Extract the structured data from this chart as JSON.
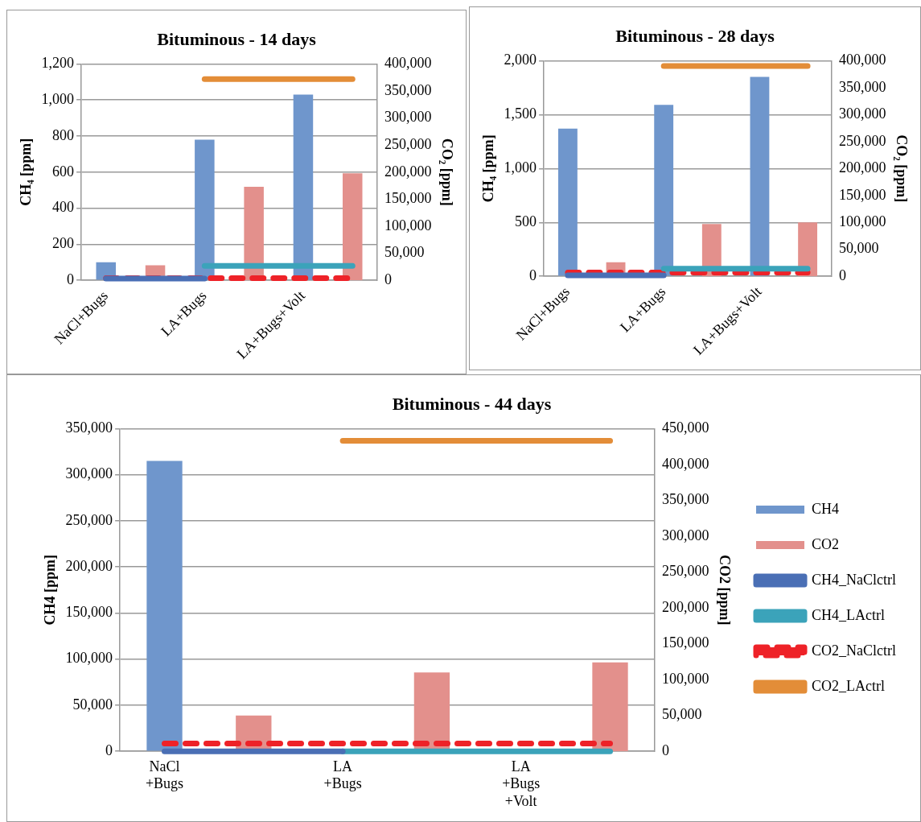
{
  "chart_data": [
    {
      "type": "bar",
      "title": "Bituminous - 14 days",
      "ylabel": "CH₄ [ppm]",
      "y2label": "CO₂ [ppm]",
      "categories": [
        "NaCl+Bugs",
        null,
        "LA+Bugs",
        null,
        "LA+Bugs+Volt",
        null
      ],
      "series": [
        {
          "color": "#6f96cc",
          "values": [
            100,
            null,
            780,
            null,
            1030,
            null
          ]
        },
        {
          "axis": "y2",
          "color": "#e3908c",
          "values": [
            null,
            28000,
            null,
            173000,
            null,
            198000
          ]
        },
        {
          "type": "line",
          "color": "#4a6fb5",
          "values": [
            10,
            10,
            10,
            null,
            null,
            null
          ]
        },
        {
          "type": "line",
          "color": "#3ba3ba",
          "values": [
            null,
            null,
            80,
            80,
            80,
            80
          ]
        },
        {
          "type": "line",
          "axis": "y2",
          "color": "#ee2228",
          "line_style": "dashed",
          "values": [
            4000,
            4000,
            4000,
            4000,
            4000,
            4000
          ]
        },
        {
          "type": "line",
          "axis": "y2",
          "color": "#e38d38",
          "values": [
            null,
            null,
            372000,
            372000,
            372000,
            372000
          ]
        }
      ],
      "ylim": [
        0,
        1200
      ],
      "yticks": [
        {
          "value": 0,
          "label": "0"
        },
        {
          "value": 200,
          "label": "200"
        },
        {
          "value": 400,
          "label": "400"
        },
        {
          "value": 600,
          "label": "600"
        },
        {
          "value": 800,
          "label": "800"
        },
        {
          "value": 1000,
          "label": "1,000"
        },
        {
          "value": 1200,
          "label": "1,200"
        }
      ],
      "y2lim": [
        0,
        400000
      ],
      "y2ticks": [
        {
          "value": 0,
          "label": "0"
        },
        {
          "value": 50000,
          "label": "50,000"
        },
        {
          "value": 100000,
          "label": "100,000"
        },
        {
          "value": 150000,
          "label": "150,000"
        },
        {
          "value": 200000,
          "label": "200,000"
        },
        {
          "value": 250000,
          "label": "250,000"
        },
        {
          "value": 300000,
          "label": "300,000"
        },
        {
          "value": 350000,
          "label": "350,000"
        },
        {
          "value": 400000,
          "label": "400,000"
        }
      ],
      "grid": "y",
      "marker": "none"
    },
    {
      "type": "bar",
      "title": "Bituminous - 28 days",
      "ylabel": "CH₄ [ppm]",
      "y2label": "CO₂ [ppm]",
      "categories": [
        "NaCl+Bugs",
        null,
        "LA+Bugs",
        null,
        "LA+Bugs+Volt",
        null
      ],
      "series": [
        {
          "color": "#6f96cc",
          "values": [
            1370,
            null,
            1590,
            null,
            1850,
            null
          ]
        },
        {
          "axis": "y2",
          "color": "#e3908c",
          "values": [
            null,
            26000,
            null,
            97000,
            null,
            100000
          ]
        },
        {
          "type": "line",
          "color": "#4a6fb5",
          "values": [
            10,
            10,
            10,
            null,
            null,
            null
          ]
        },
        {
          "type": "line",
          "color": "#3ba3ba",
          "values": [
            null,
            null,
            70,
            70,
            70,
            70
          ]
        },
        {
          "type": "line",
          "axis": "y2",
          "color": "#ee2228",
          "line_style": "dashed",
          "values": [
            7000,
            7000,
            7000,
            7000,
            7000,
            7000
          ]
        },
        {
          "type": "line",
          "axis": "y2",
          "color": "#e38d38",
          "values": [
            null,
            null,
            390000,
            390000,
            390000,
            390000
          ]
        }
      ],
      "ylim": [
        0,
        2000
      ],
      "yticks": [
        {
          "value": 0,
          "label": "0"
        },
        {
          "value": 500,
          "label": "500"
        },
        {
          "value": 1000,
          "label": "1,000"
        },
        {
          "value": 1500,
          "label": "1,500"
        },
        {
          "value": 2000,
          "label": "2,000"
        }
      ],
      "y2lim": [
        0,
        400000
      ],
      "y2ticks": [
        {
          "value": 0,
          "label": "0"
        },
        {
          "value": 50000,
          "label": "50,000"
        },
        {
          "value": 100000,
          "label": "100,000"
        },
        {
          "value": 150000,
          "label": "150,000"
        },
        {
          "value": 200000,
          "label": "200,000"
        },
        {
          "value": 250000,
          "label": "250,000"
        },
        {
          "value": 300000,
          "label": "300,000"
        },
        {
          "value": 350000,
          "label": "350,000"
        },
        {
          "value": 400000,
          "label": "400,000"
        }
      ],
      "grid": "y",
      "marker": "none"
    },
    {
      "type": "bar",
      "title": "Bituminous - 44 days",
      "ylabel": "CH4 [ppm]",
      "y2label": "CO2 [ppm]",
      "categories": [
        "NaCl+Bugs",
        null,
        "LA+Bugs",
        null,
        "LA+Bugs+Volt",
        null
      ],
      "series": [
        {
          "name": "CH4",
          "color": "#6f96cc",
          "values": [
            315000,
            null,
            null,
            null,
            null,
            null
          ]
        },
        {
          "name": "CO2",
          "axis": "y2",
          "color": "#e3908c",
          "values": [
            null,
            50000,
            null,
            110000,
            null,
            124000
          ]
        },
        {
          "type": "line",
          "name": "CH4_NaClctrl",
          "color": "#4a6fb5",
          "values": [
            0,
            0,
            0,
            null,
            null,
            null
          ]
        },
        {
          "type": "line",
          "name": "CH4_LActrl",
          "color": "#3ba3ba",
          "values": [
            null,
            null,
            0,
            0,
            0,
            0
          ]
        },
        {
          "type": "line",
          "name": "CO2_NaClctrl",
          "axis": "y2",
          "color": "#ee2228",
          "line_style": "dashed",
          "values": [
            11000,
            11000,
            11000,
            11000,
            11000,
            11000
          ]
        },
        {
          "type": "line",
          "name": "CO2_LActrl",
          "axis": "y2",
          "color": "#e38d38",
          "values": [
            null,
            null,
            433000,
            433000,
            433000,
            433000
          ]
        }
      ],
      "ylim": [
        0,
        350000
      ],
      "yticks": [
        {
          "value": 0,
          "label": "0"
        },
        {
          "value": 50000,
          "label": "50,000"
        },
        {
          "value": 100000,
          "label": "100,000"
        },
        {
          "value": 150000,
          "label": "150,000"
        },
        {
          "value": 200000,
          "label": "200,000"
        },
        {
          "value": 250000,
          "label": "250,000"
        },
        {
          "value": 300000,
          "label": "300,000"
        },
        {
          "value": 350000,
          "label": "350,000"
        }
      ],
      "y2lim": [
        0,
        450000
      ],
      "y2ticks": [
        {
          "value": 0,
          "label": "0"
        },
        {
          "value": 50000,
          "label": "50,000"
        },
        {
          "value": 100000,
          "label": "100,000"
        },
        {
          "value": 150000,
          "label": "150,000"
        },
        {
          "value": 200000,
          "label": "200,000"
        },
        {
          "value": 250000,
          "label": "250,000"
        },
        {
          "value": 300000,
          "label": "300,000"
        },
        {
          "value": 350000,
          "label": "350,000"
        },
        {
          "value": 400000,
          "label": "400,000"
        },
        {
          "value": 450000,
          "label": "450,000"
        }
      ],
      "grid": "y",
      "marker": "none",
      "legend": "right"
    }
  ]
}
